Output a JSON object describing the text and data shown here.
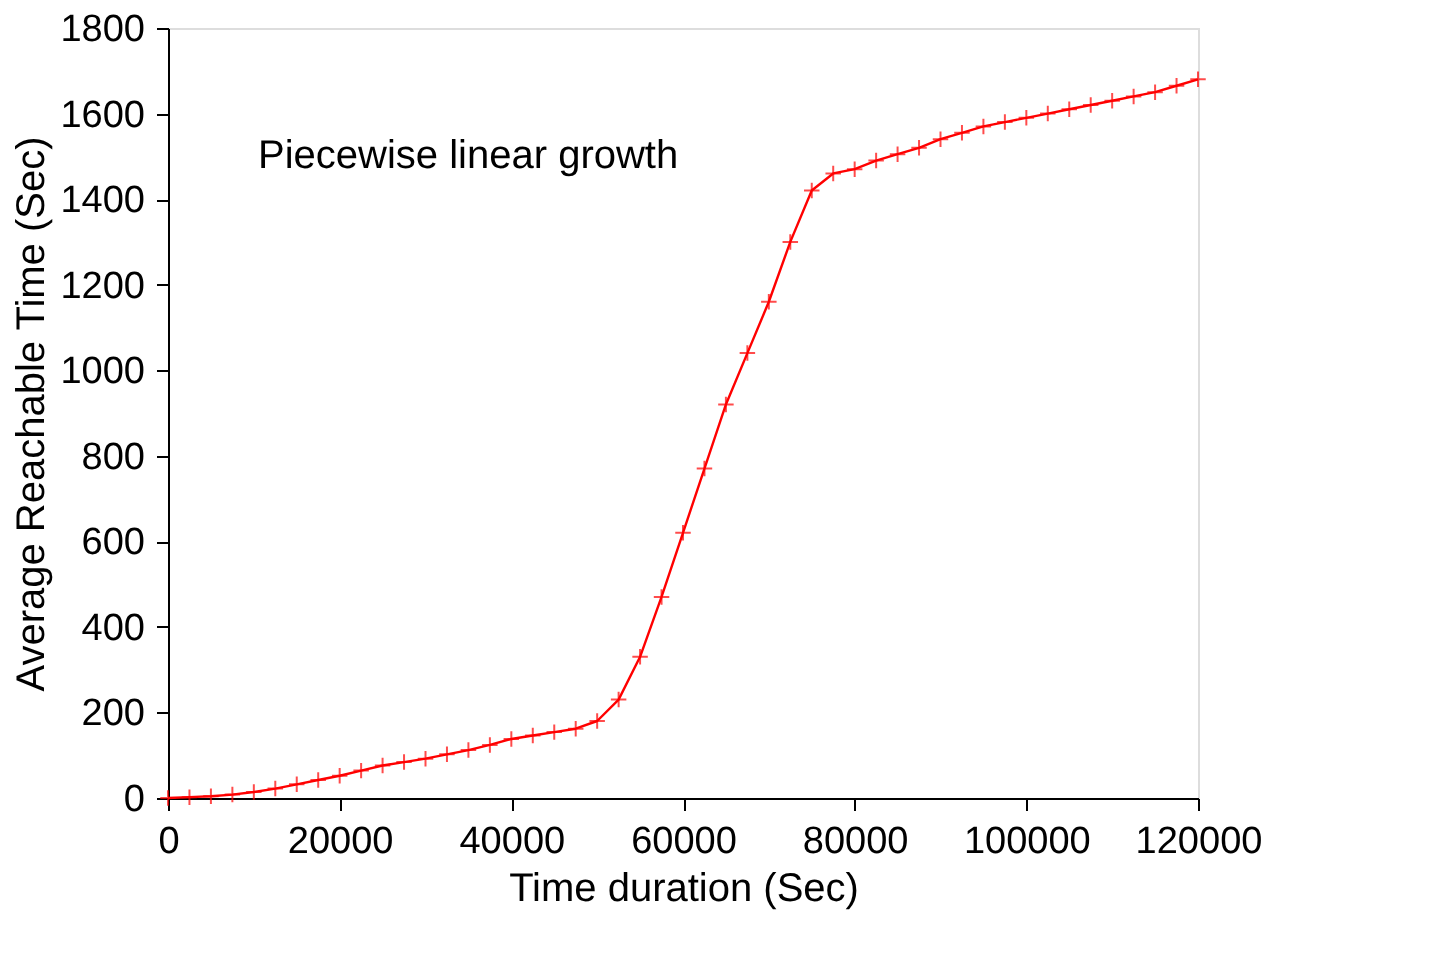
{
  "chart_data": {
    "type": "line",
    "xlabel": "Time duration (Sec)",
    "ylabel": "Average Reachable Time (Sec)",
    "annotations": [
      "Piecewise linear growth"
    ],
    "x": [
      0,
      2500,
      5000,
      7500,
      10000,
      12500,
      15000,
      17500,
      20000,
      22500,
      25000,
      27500,
      30000,
      32500,
      35000,
      37500,
      40000,
      42500,
      45000,
      47500,
      50000,
      52500,
      55000,
      57500,
      60000,
      62500,
      65000,
      67500,
      70000,
      72500,
      75000,
      77500,
      80000,
      82500,
      85000,
      87500,
      90000,
      92500,
      95000,
      97500,
      100000,
      102500,
      105000,
      107500,
      110000,
      112500,
      115000,
      117500,
      120000
    ],
    "series": [
      {
        "color": "#ff0000",
        "values": [
          0,
          2,
          4,
          8,
          14,
          22,
          32,
          42,
          52,
          64,
          76,
          84,
          92,
          102,
          112,
          124,
          138,
          146,
          154,
          162,
          180,
          230,
          330,
          470,
          620,
          770,
          920,
          1040,
          1160,
          1300,
          1420,
          1460,
          1470,
          1490,
          1505,
          1520,
          1540,
          1555,
          1570,
          1580,
          1590,
          1600,
          1610,
          1620,
          1630,
          1640,
          1650,
          1665,
          1680
        ]
      }
    ],
    "xlim": [
      0,
      120000
    ],
    "xticks": [
      0,
      20000,
      40000,
      60000,
      80000,
      100000,
      120000
    ],
    "ylim": [
      0,
      1800
    ],
    "yticks": [
      0,
      200,
      400,
      600,
      800,
      1000,
      1200,
      1400,
      1600,
      1800
    ],
    "grid": false,
    "marker": "cross",
    "line_style": "solid"
  }
}
